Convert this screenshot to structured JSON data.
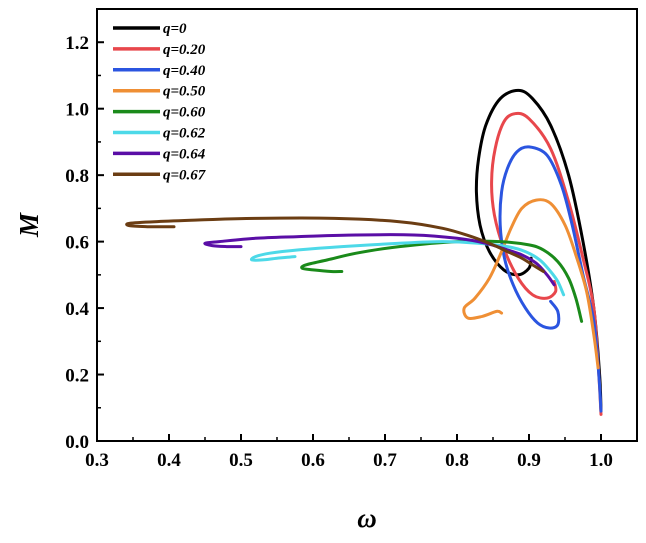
{
  "chart_data": {
    "type": "line",
    "title": "",
    "xlabel": "ω",
    "ylabel": "M",
    "xlim": [
      0.3,
      1.05
    ],
    "ylim": [
      0.0,
      1.3
    ],
    "xticks": [
      {
        "value": 0.3,
        "label": "0.3"
      },
      {
        "value": 0.4,
        "label": "0.4"
      },
      {
        "value": 0.5,
        "label": "0.5"
      },
      {
        "value": 0.6,
        "label": "0.6"
      },
      {
        "value": 0.7,
        "label": "0.7"
      },
      {
        "value": 0.8,
        "label": "0.8"
      },
      {
        "value": 0.9,
        "label": "0.9"
      },
      {
        "value": 1.0,
        "label": "1.0"
      }
    ],
    "yticks": [
      {
        "value": 0.0,
        "label": "0.0"
      },
      {
        "value": 0.2,
        "label": "0.2"
      },
      {
        "value": 0.4,
        "label": "0.4"
      },
      {
        "value": 0.6,
        "label": "0.6"
      },
      {
        "value": 0.8,
        "label": "0.8"
      },
      {
        "value": 1.0,
        "label": "1.0"
      },
      {
        "value": 1.2,
        "label": "1.2"
      }
    ],
    "grid": false,
    "legend_position": "top-left",
    "series": [
      {
        "name": "q=0",
        "color": "#000000",
        "points": [
          [
            1.0,
            0.09
          ],
          [
            0.998,
            0.2
          ],
          [
            0.99,
            0.4
          ],
          [
            0.975,
            0.6
          ],
          [
            0.955,
            0.8
          ],
          [
            0.93,
            0.95
          ],
          [
            0.905,
            1.03
          ],
          [
            0.885,
            1.055
          ],
          [
            0.86,
            1.03
          ],
          [
            0.84,
            0.95
          ],
          [
            0.83,
            0.85
          ],
          [
            0.827,
            0.75
          ],
          [
            0.832,
            0.65
          ],
          [
            0.845,
            0.57
          ],
          [
            0.865,
            0.515
          ],
          [
            0.885,
            0.5
          ],
          [
            0.9,
            0.52
          ],
          [
            0.903,
            0.55
          ]
        ]
      },
      {
        "name": "q=0.20",
        "color": "#e8474c",
        "points": [
          [
            1.0,
            0.08
          ],
          [
            0.997,
            0.2
          ],
          [
            0.99,
            0.4
          ],
          [
            0.975,
            0.55
          ],
          [
            0.955,
            0.72
          ],
          [
            0.93,
            0.88
          ],
          [
            0.9,
            0.97
          ],
          [
            0.88,
            0.985
          ],
          [
            0.865,
            0.96
          ],
          [
            0.853,
            0.88
          ],
          [
            0.848,
            0.78
          ],
          [
            0.852,
            0.68
          ],
          [
            0.865,
            0.58
          ],
          [
            0.885,
            0.49
          ],
          [
            0.905,
            0.44
          ],
          [
            0.925,
            0.43
          ],
          [
            0.937,
            0.45
          ],
          [
            0.935,
            0.48
          ]
        ]
      },
      {
        "name": "q=0.40",
        "color": "#2b55e0",
        "points": [
          [
            1.0,
            0.09
          ],
          [
            0.997,
            0.2
          ],
          [
            0.99,
            0.36
          ],
          [
            0.975,
            0.5
          ],
          [
            0.96,
            0.65
          ],
          [
            0.945,
            0.77
          ],
          [
            0.925,
            0.86
          ],
          [
            0.9,
            0.885
          ],
          [
            0.883,
            0.87
          ],
          [
            0.87,
            0.82
          ],
          [
            0.862,
            0.75
          ],
          [
            0.86,
            0.65
          ],
          [
            0.866,
            0.55
          ],
          [
            0.878,
            0.47
          ],
          [
            0.895,
            0.4
          ],
          [
            0.912,
            0.355
          ],
          [
            0.928,
            0.34
          ],
          [
            0.94,
            0.35
          ],
          [
            0.94,
            0.39
          ],
          [
            0.93,
            0.42
          ]
        ]
      },
      {
        "name": "q=0.50",
        "color": "#ef8f35",
        "points": [
          [
            0.996,
            0.22
          ],
          [
            0.99,
            0.32
          ],
          [
            0.98,
            0.45
          ],
          [
            0.965,
            0.56
          ],
          [
            0.95,
            0.65
          ],
          [
            0.93,
            0.715
          ],
          [
            0.91,
            0.725
          ],
          [
            0.89,
            0.7
          ],
          [
            0.875,
            0.64
          ],
          [
            0.86,
            0.56
          ],
          [
            0.845,
            0.49
          ],
          [
            0.825,
            0.43
          ],
          [
            0.81,
            0.4
          ],
          [
            0.815,
            0.37
          ],
          [
            0.835,
            0.375
          ],
          [
            0.855,
            0.39
          ],
          [
            0.862,
            0.385
          ]
        ]
      },
      {
        "name": "q=0.60",
        "color": "#1a8a1a",
        "points": [
          [
            0.973,
            0.36
          ],
          [
            0.965,
            0.43
          ],
          [
            0.955,
            0.49
          ],
          [
            0.94,
            0.54
          ],
          [
            0.92,
            0.575
          ],
          [
            0.9,
            0.59
          ],
          [
            0.86,
            0.6
          ],
          [
            0.8,
            0.6
          ],
          [
            0.72,
            0.585
          ],
          [
            0.66,
            0.565
          ],
          [
            0.62,
            0.545
          ],
          [
            0.59,
            0.53
          ],
          [
            0.585,
            0.52
          ],
          [
            0.6,
            0.515
          ],
          [
            0.625,
            0.51
          ],
          [
            0.64,
            0.51
          ]
        ]
      },
      {
        "name": "q=0.62",
        "color": "#4dd9e8",
        "points": [
          [
            0.948,
            0.44
          ],
          [
            0.94,
            0.48
          ],
          [
            0.93,
            0.51
          ],
          [
            0.915,
            0.545
          ],
          [
            0.895,
            0.57
          ],
          [
            0.87,
            0.585
          ],
          [
            0.83,
            0.595
          ],
          [
            0.78,
            0.6
          ],
          [
            0.72,
            0.595
          ],
          [
            0.64,
            0.585
          ],
          [
            0.58,
            0.575
          ],
          [
            0.54,
            0.565
          ],
          [
            0.52,
            0.555
          ],
          [
            0.515,
            0.545
          ],
          [
            0.53,
            0.545
          ],
          [
            0.55,
            0.55
          ],
          [
            0.575,
            0.555
          ]
        ]
      },
      {
        "name": "q=0.64",
        "color": "#5a0ea6",
        "points": [
          [
            0.935,
            0.47
          ],
          [
            0.925,
            0.5
          ],
          [
            0.91,
            0.535
          ],
          [
            0.89,
            0.56
          ],
          [
            0.87,
            0.575
          ],
          [
            0.84,
            0.595
          ],
          [
            0.8,
            0.61
          ],
          [
            0.74,
            0.62
          ],
          [
            0.66,
            0.62
          ],
          [
            0.58,
            0.615
          ],
          [
            0.52,
            0.61
          ],
          [
            0.47,
            0.6
          ],
          [
            0.45,
            0.595
          ],
          [
            0.46,
            0.588
          ],
          [
            0.48,
            0.585
          ],
          [
            0.5,
            0.585
          ]
        ]
      },
      {
        "name": "q=0.67",
        "color": "#6b3d13",
        "points": [
          [
            0.92,
            0.51
          ],
          [
            0.905,
            0.53
          ],
          [
            0.89,
            0.55
          ],
          [
            0.87,
            0.57
          ],
          [
            0.85,
            0.59
          ],
          [
            0.82,
            0.615
          ],
          [
            0.78,
            0.64
          ],
          [
            0.72,
            0.66
          ],
          [
            0.63,
            0.67
          ],
          [
            0.52,
            0.67
          ],
          [
            0.44,
            0.665
          ],
          [
            0.38,
            0.66
          ],
          [
            0.345,
            0.655
          ],
          [
            0.345,
            0.648
          ],
          [
            0.37,
            0.645
          ],
          [
            0.39,
            0.645
          ],
          [
            0.407,
            0.645
          ]
        ]
      }
    ]
  }
}
